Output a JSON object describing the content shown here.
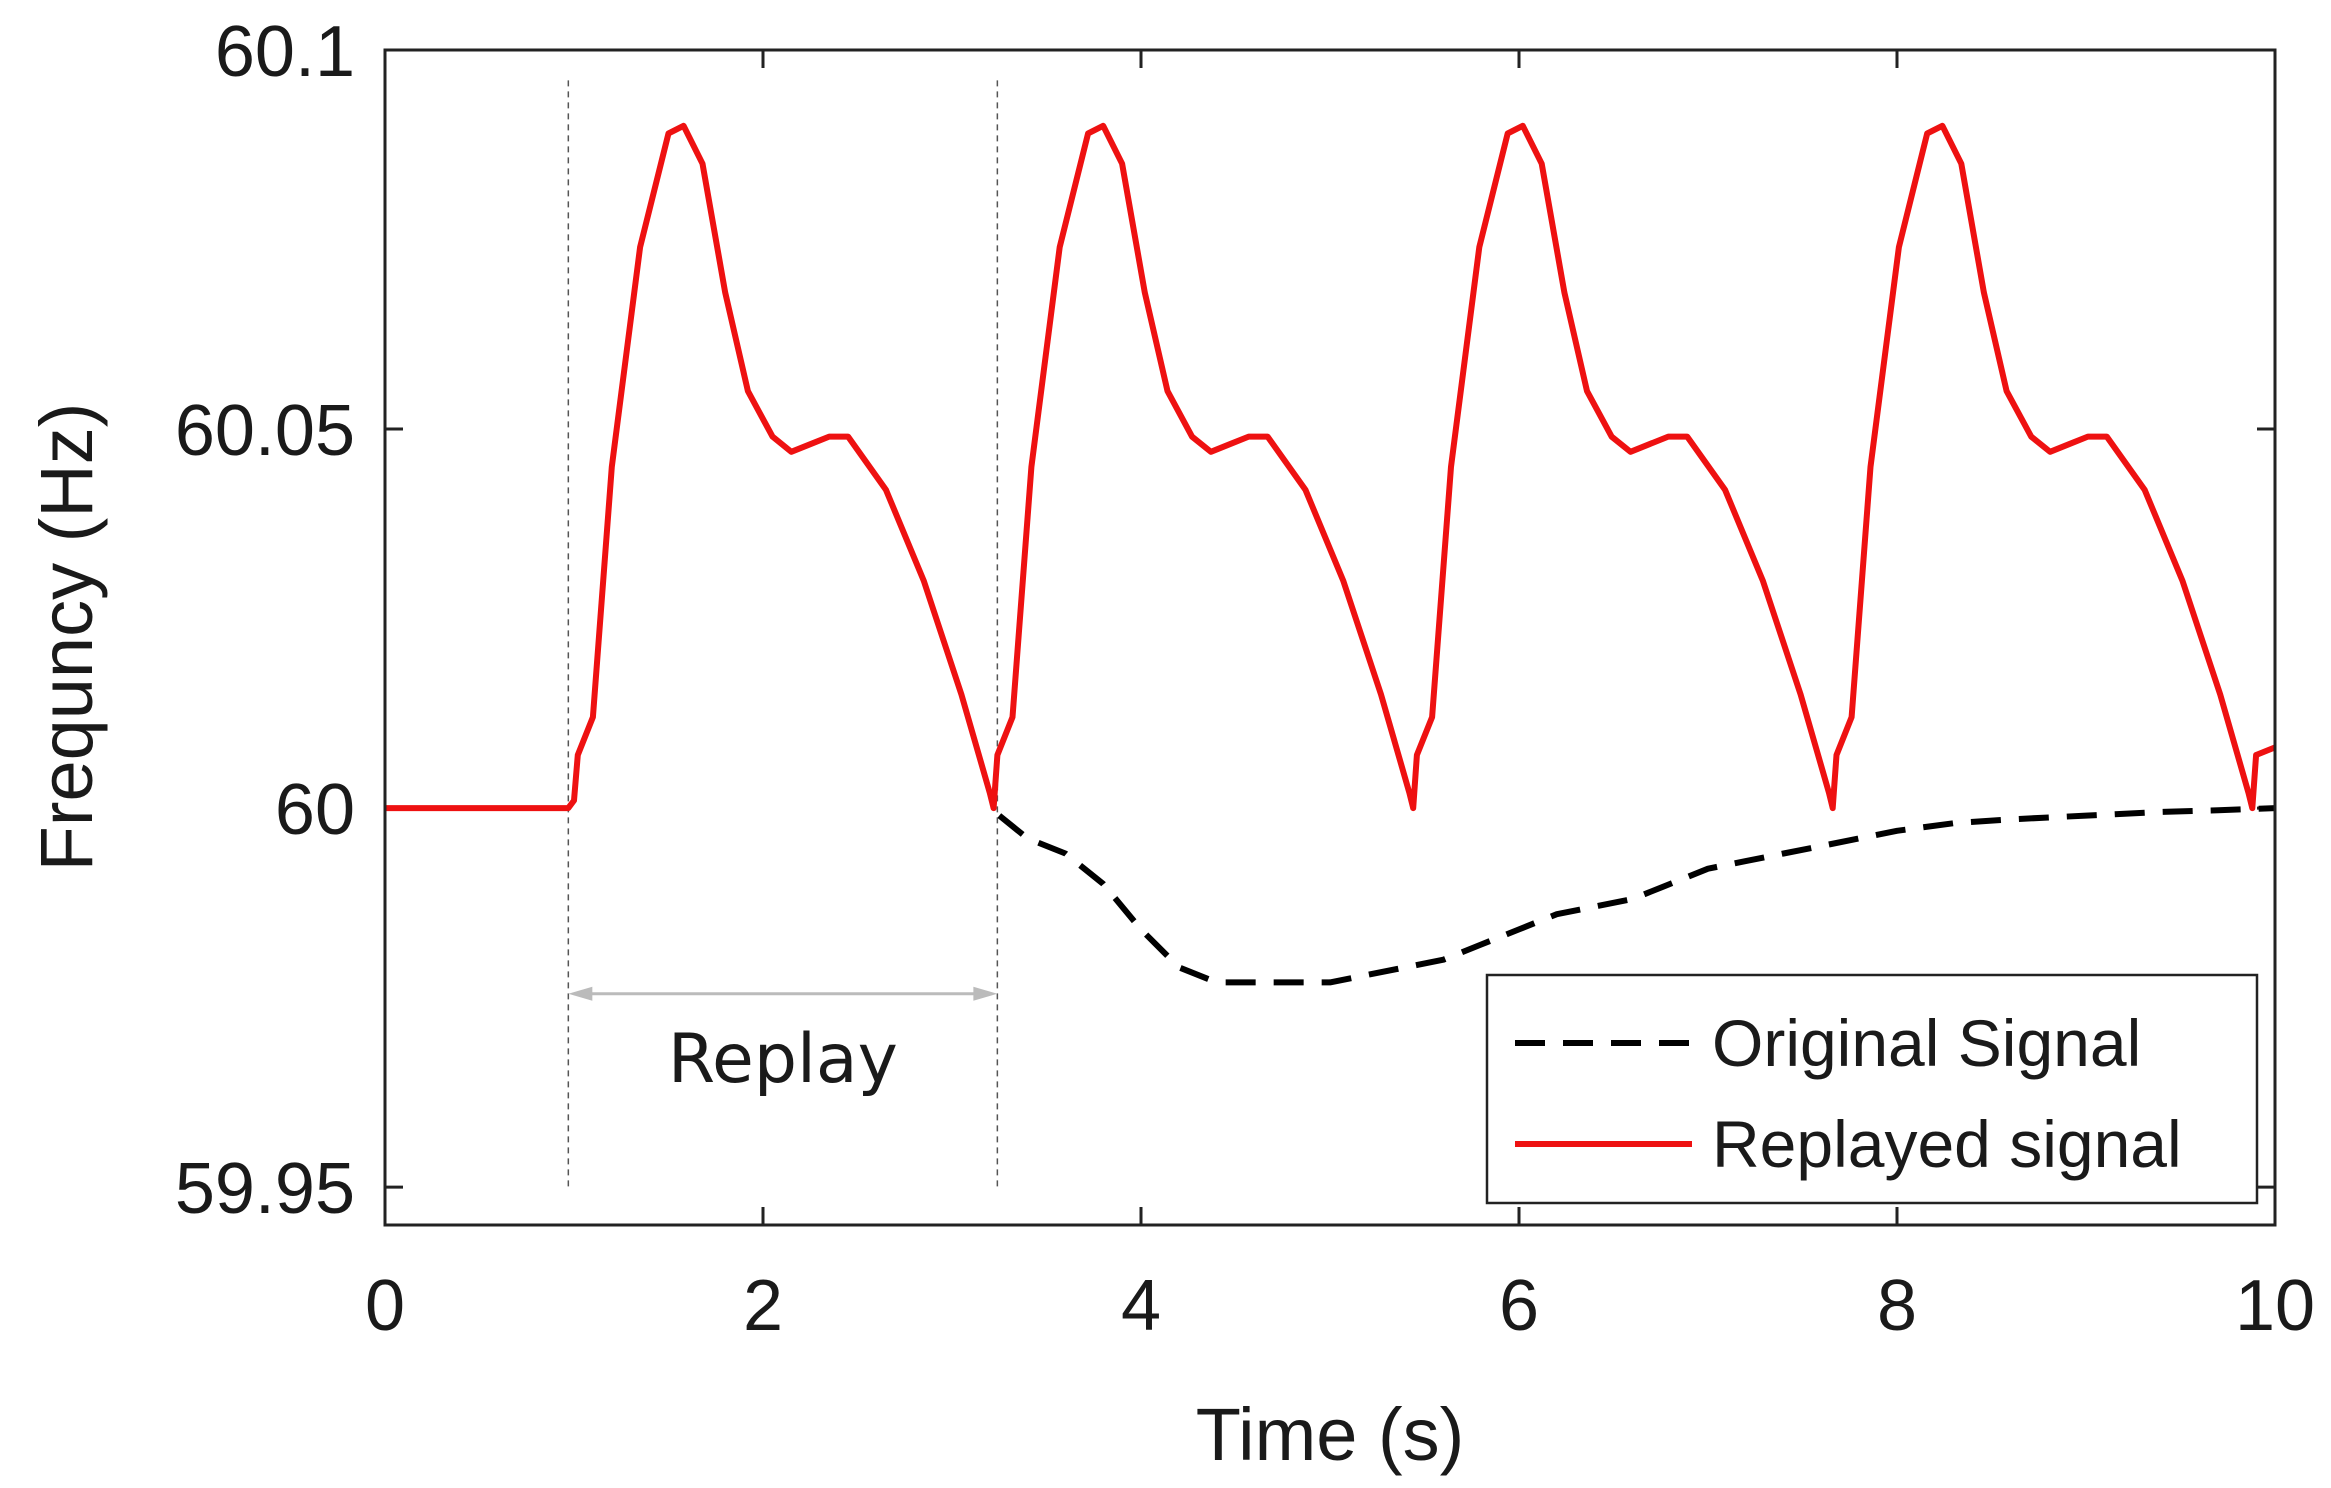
{
  "chart_data": {
    "type": "line",
    "title": "",
    "xlabel": "Time (s)",
    "ylabel": "Frequncy (Hz)",
    "xlim": [
      0,
      10
    ],
    "ylim": [
      59.945,
      60.1
    ],
    "x_ticks": [
      0,
      2,
      4,
      6,
      8,
      10
    ],
    "x_tick_labels": [
      "0",
      "2",
      "4",
      "6",
      "8",
      "10"
    ],
    "y_ticks": [
      59.95,
      60,
      60.05,
      60.1
    ],
    "y_tick_labels": [
      "59.95",
      "60",
      "60.05",
      "60.1"
    ],
    "grid": false,
    "legend_position": "bottom-right",
    "series": [
      {
        "name": "Original Signal",
        "color": "#000000",
        "style": "dashed",
        "x": [
          3.25,
          3.4,
          3.6,
          3.8,
          4.0,
          4.2,
          4.4,
          4.6,
          4.8,
          5.0,
          5.2,
          5.4,
          5.6,
          5.8,
          6.0,
          6.2,
          6.4,
          6.6,
          6.8,
          7.0,
          7.2,
          7.4,
          7.6,
          7.8,
          8.0,
          8.3,
          8.6,
          9.0,
          9.4,
          9.7,
          10.0
        ],
        "y": [
          59.999,
          59.996,
          59.994,
          59.99,
          59.984,
          59.979,
          59.977,
          59.977,
          59.977,
          59.977,
          59.978,
          59.979,
          59.98,
          59.982,
          59.984,
          59.986,
          59.987,
          59.988,
          59.99,
          59.992,
          59.993,
          59.994,
          59.995,
          59.996,
          59.997,
          59.998,
          59.9985,
          59.999,
          59.9995,
          59.9997,
          60.0
        ]
      },
      {
        "name": "Replayed signal",
        "color": "#ee1111",
        "style": "solid",
        "x": [
          0,
          0.97,
          1.0,
          1.02,
          1.1,
          1.2,
          1.35,
          1.5,
          1.58,
          1.68,
          1.8,
          1.92,
          2.05,
          2.15,
          2.25,
          2.35,
          2.45,
          2.65,
          2.85,
          3.05,
          3.2,
          3.22,
          3.24,
          3.32,
          3.42,
          3.57,
          3.72,
          3.8,
          3.9,
          4.02,
          4.14,
          4.27,
          4.37,
          4.47,
          4.57,
          4.67,
          4.87,
          5.07,
          5.27,
          5.42,
          5.44,
          5.46,
          5.54,
          5.64,
          5.79,
          5.94,
          6.02,
          6.12,
          6.24,
          6.36,
          6.49,
          6.59,
          6.69,
          6.79,
          6.89,
          7.09,
          7.29,
          7.49,
          7.64,
          7.66,
          7.68,
          7.76,
          7.86,
          8.01,
          8.16,
          8.24,
          8.34,
          8.46,
          8.58,
          8.71,
          8.81,
          8.91,
          9.01,
          9.11,
          9.31,
          9.51,
          9.71,
          9.86,
          9.88,
          9.9,
          10.0
        ],
        "y": [
          60.0,
          60.0,
          60.001,
          60.007,
          60.012,
          60.045,
          60.074,
          60.089,
          60.09,
          60.085,
          60.068,
          60.055,
          60.049,
          60.047,
          60.048,
          60.049,
          60.049,
          60.042,
          60.03,
          60.015,
          60.002,
          60.0,
          60.007,
          60.012,
          60.045,
          60.074,
          60.089,
          60.09,
          60.085,
          60.068,
          60.055,
          60.049,
          60.047,
          60.048,
          60.049,
          60.049,
          60.042,
          60.03,
          60.015,
          60.002,
          60.0,
          60.007,
          60.012,
          60.045,
          60.074,
          60.089,
          60.09,
          60.085,
          60.068,
          60.055,
          60.049,
          60.047,
          60.048,
          60.049,
          60.049,
          60.042,
          60.03,
          60.015,
          60.002,
          60.0,
          60.007,
          60.012,
          60.045,
          60.074,
          60.089,
          60.09,
          60.085,
          60.068,
          60.055,
          60.049,
          60.047,
          60.048,
          60.049,
          60.049,
          60.042,
          60.03,
          60.015,
          60.002,
          60.0,
          60.007,
          60.008
        ]
      }
    ],
    "annotations": {
      "replay_label": "Replay",
      "replay_start_x": 0.97,
      "replay_end_x": 3.24
    }
  }
}
